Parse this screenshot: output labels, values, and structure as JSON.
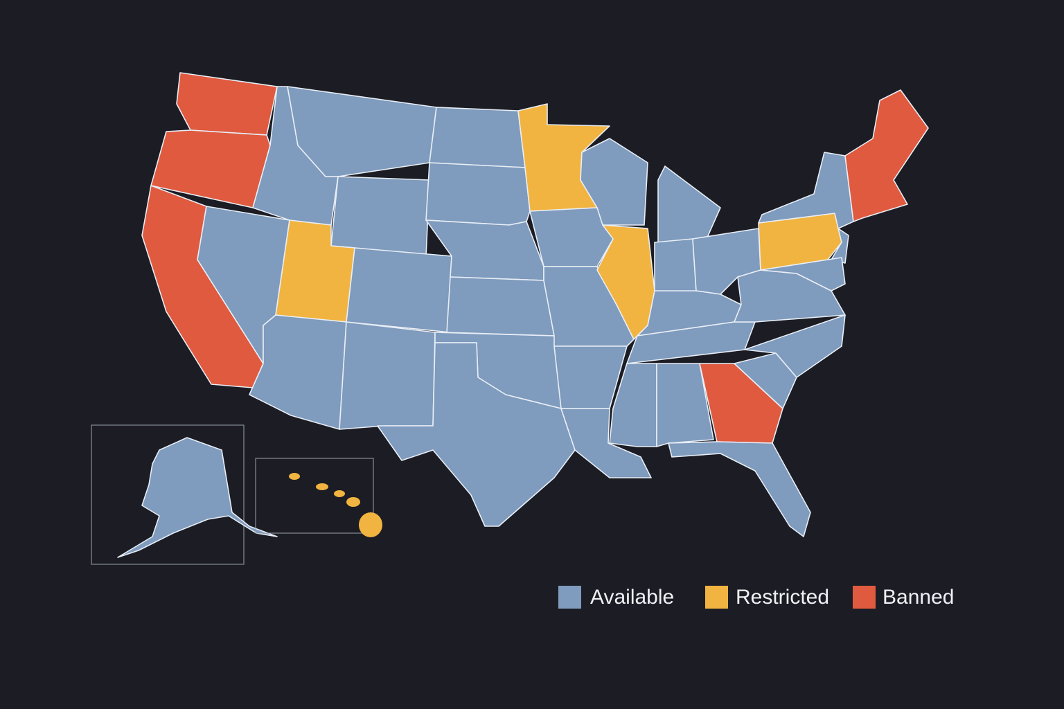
{
  "legend": {
    "items": [
      {
        "label": "Available",
        "color": "#7f9bbd"
      },
      {
        "label": "Restricted",
        "color": "#f2b440"
      },
      {
        "label": "Banned",
        "color": "#e05a3f"
      }
    ]
  }
}
